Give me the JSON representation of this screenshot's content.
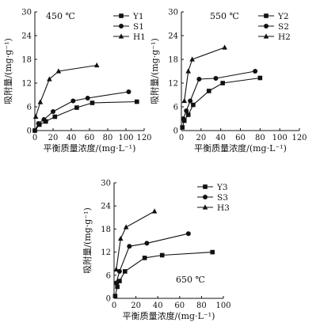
{
  "chart_data": [
    {
      "type": "line",
      "name": "panel-450",
      "temperature_label": "450 ℃",
      "xlabel": "平衡质量浓度/(mg·L⁻¹)",
      "ylabel": "吸附量/(mg·g⁻¹)",
      "xlim": [
        0,
        120
      ],
      "ylim": [
        0,
        30
      ],
      "xticks": [
        0,
        20,
        40,
        60,
        80,
        100,
        120
      ],
      "yticks": [
        0,
        6,
        12,
        18,
        24,
        30
      ],
      "legend_position": "top-right",
      "series": [
        {
          "name": "Y1",
          "marker": "square",
          "x": [
            0,
            5,
            12,
            22,
            46,
            63,
            112
          ],
          "y": [
            0,
            1.5,
            2.3,
            3.5,
            5.8,
            7.0,
            7.3
          ]
        },
        {
          "name": "S1",
          "marker": "circle",
          "x": [
            0,
            4,
            10,
            20,
            42,
            58,
            103
          ],
          "y": [
            0,
            1.8,
            2.8,
            4.8,
            7.5,
            8.2,
            9.8
          ]
        },
        {
          "name": "H1",
          "marker": "triangle",
          "x": [
            1,
            6,
            16,
            26,
            68
          ],
          "y": [
            3.5,
            7.2,
            13.0,
            15.0,
            16.5
          ]
        }
      ]
    },
    {
      "type": "line",
      "name": "panel-550",
      "temperature_label": "550 ℃",
      "xlabel": "平衡质量浓度/(mg·L⁻¹)",
      "ylabel": "吸附量/(mg·g⁻¹)",
      "xlim": [
        0,
        120
      ],
      "ylim": [
        0,
        30
      ],
      "xticks": [
        0,
        20,
        40,
        60,
        80,
        100,
        120
      ],
      "yticks": [
        0,
        6,
        12,
        18,
        24,
        30
      ],
      "legend_position": "top-right",
      "series": [
        {
          "name": "Y2",
          "marker": "square",
          "x": [
            1,
            3,
            7,
            12,
            28,
            42,
            80
          ],
          "y": [
            0.8,
            2.5,
            4.0,
            6.5,
            10.0,
            12.0,
            13.3
          ]
        },
        {
          "name": "S2",
          "marker": "circle",
          "x": [
            2,
            5,
            9,
            18,
            35,
            75
          ],
          "y": [
            3.0,
            5.0,
            7.5,
            13.0,
            13.2,
            15.0
          ]
        },
        {
          "name": "H2",
          "marker": "triangle",
          "x": [
            3,
            7,
            11,
            44
          ],
          "y": [
            7.5,
            15.0,
            18.0,
            21.0
          ]
        }
      ]
    },
    {
      "type": "line",
      "name": "panel-650",
      "temperature_label": "650 ℃",
      "xlabel": "平衡质量浓度/(mg·L⁻¹)",
      "ylabel": "吸附量/(mg·g⁻¹)",
      "xlim": [
        0,
        100
      ],
      "ylim": [
        0,
        30
      ],
      "xticks": [
        0,
        20,
        40,
        60,
        80,
        100
      ],
      "yticks": [
        0,
        6,
        12,
        18,
        24,
        30
      ],
      "legend_position": "top-right",
      "series": [
        {
          "name": "Y3",
          "marker": "square",
          "x": [
            1,
            3,
            5,
            10,
            28,
            44,
            90
          ],
          "y": [
            0.6,
            3.0,
            4.5,
            7.0,
            10.5,
            11.2,
            12.0
          ]
        },
        {
          "name": "S3",
          "marker": "circle",
          "x": [
            2,
            5,
            14,
            30,
            68
          ],
          "y": [
            4.0,
            7.0,
            13.5,
            14.3,
            16.8
          ]
        },
        {
          "name": "H3",
          "marker": "triangle",
          "x": [
            2,
            6,
            11,
            37
          ],
          "y": [
            7.5,
            15.5,
            18.5,
            22.6
          ]
        }
      ]
    }
  ]
}
